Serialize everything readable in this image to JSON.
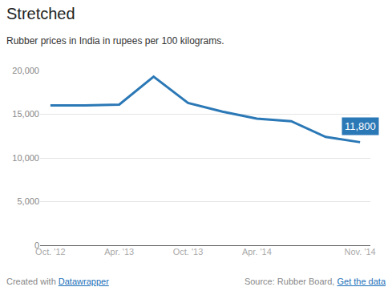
{
  "chart_data": {
    "type": "line",
    "title": "Stretched",
    "subtitle": "Rubber prices in India in rupees per 100 kilograms.",
    "categories": [
      "Oct. '12",
      null,
      "Apr. '13",
      null,
      "Oct. '13",
      null,
      "Apr. '14",
      null,
      null,
      "Nov. '14"
    ],
    "values": [
      16000,
      16000,
      16100,
      19300,
      16300,
      15300,
      14500,
      14200,
      12400,
      11800
    ],
    "value_labels": [
      null,
      null,
      null,
      null,
      null,
      null,
      null,
      null,
      null,
      "11,800"
    ],
    "data_labels": true,
    "color": "#2b78b6",
    "ylim": [
      0,
      20000
    ],
    "yticks": [
      0,
      {
        "value": 5000,
        "label": "5,000"
      },
      {
        "value": 10000,
        "label": "10,000"
      },
      {
        "value": 15000,
        "label": "15,000"
      },
      {
        "value": 20000,
        "label": "20,000"
      }
    ],
    "grid": true,
    "credit": "Created with",
    "credit_link": "Datawrapper",
    "source": "Source: Rubber Board,",
    "source_link": "Get the data"
  }
}
